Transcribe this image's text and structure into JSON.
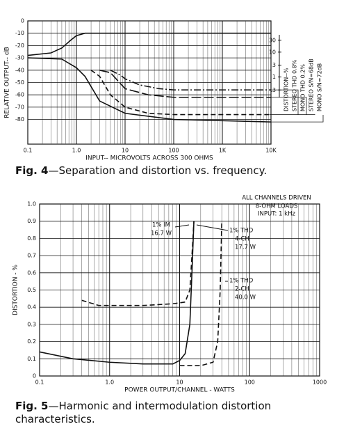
{
  "chart_data": [
    {
      "type": "line",
      "caption_label": "Fig. 4",
      "caption_text": "—Separation and distortion vs. frequency.",
      "xlabel": "INPUT-- MICROVOLTS ACROSS 300 OHMS",
      "ylabel": "RELATIVE OUTPUT-- dB",
      "y2label": "DISTORTION--%",
      "xscale": "log",
      "xlim": [
        0.1,
        10000
      ],
      "xticks": [
        0.1,
        {
          "value": 1,
          "label": "1.0"
        },
        10,
        100,
        {
          "value": 1000,
          "label": "1K"
        },
        {
          "value": 10000,
          "label": "10K"
        }
      ],
      "ylim": [
        -100,
        0
      ],
      "yticks": [
        0,
        -10,
        -20,
        -30,
        -40,
        -50,
        -60,
        -70,
        -80
      ],
      "y2scale": "log",
      "y2lim": [
        0.002,
        180
      ],
      "y2ticks": [
        30,
        10,
        3,
        1,
        {
          "value": 0.3,
          "label": ".3"
        }
      ],
      "grid": true,
      "series": [
        {
          "color": "#111",
          "dash": "solid",
          "x": [
            0.1,
            0.3,
            0.5,
            0.8,
            1,
            1.5,
            3,
            10,
            100,
            1000,
            10000
          ],
          "values": [
            -28,
            -26,
            -22,
            -15,
            -12,
            -10,
            -10,
            -10,
            -10,
            -10,
            -10
          ]
        },
        {
          "name": "STEREO THD 0.8%",
          "color": "#111",
          "dash": "dashdot",
          "x": [
            5,
            8,
            10,
            20,
            50,
            100,
            1000,
            10000
          ],
          "values": [
            -40,
            -44,
            -47,
            -52,
            -55,
            -56,
            -56,
            -56
          ]
        },
        {
          "name": "MONO THD 0.2%",
          "color": "#111",
          "dash": "longdash",
          "x": [
            3,
            5,
            10,
            30,
            100,
            1000,
            10000
          ],
          "values": [
            -40,
            -42,
            -55,
            -60,
            -62,
            -62,
            -62
          ]
        },
        {
          "name": "STEREO S/N=68dB",
          "color": "#111",
          "dash": "dashed",
          "x": [
            2,
            3,
            5,
            10,
            30,
            100,
            1000,
            10000
          ],
          "values": [
            -40,
            -45,
            -60,
            -70,
            -75,
            -76,
            -76,
            -76
          ]
        },
        {
          "name": "MONO S/N=72dB",
          "color": "#111",
          "dash": "solid",
          "x": [
            0.1,
            0.5,
            1,
            1.5,
            3,
            10,
            100,
            1000,
            10000
          ],
          "values": [
            -30,
            -31,
            -38,
            -45,
            -65,
            -75,
            -80,
            -81,
            -82
          ]
        }
      ]
    },
    {
      "type": "line",
      "caption_label": "Fig. 5",
      "caption_text": "—Harmonic and intermodulation distortion characteristics.",
      "xlabel": "POWER OUTPUT/CHANNEL - WATTS",
      "ylabel": "DISTORTION - %",
      "xscale": "log",
      "xlim": [
        0.1,
        1000
      ],
      "xticks": [
        0.1,
        {
          "value": 1,
          "label": "1.0"
        },
        10,
        100,
        1000
      ],
      "ylim": [
        0,
        1
      ],
      "yticks": [
        0,
        0.1,
        0.2,
        0.3,
        0.4,
        0.5,
        0.6,
        0.7,
        0.8,
        0.9,
        {
          "value": 1,
          "label": "1.0"
        }
      ],
      "grid": true,
      "annotations": [
        "ALL CHANNELS DRIVEN",
        "8-OHM LOADS",
        "INPUT: 1 kHz",
        "1% IM",
        "16.7 W",
        "1% THD",
        "4-CH",
        "17.7 W",
        "1% THD",
        "2-CH",
        "40.0 W"
      ],
      "series": [
        {
          "color": "#111",
          "dash": "solid",
          "x": [
            0.1,
            0.3,
            1,
            3,
            8,
            10,
            12,
            14,
            15,
            16
          ],
          "values": [
            0.14,
            0.1,
            0.08,
            0.07,
            0.07,
            0.09,
            0.13,
            0.3,
            0.6,
            0.9
          ]
        },
        {
          "color": "#111",
          "dash": "dashed",
          "x": [
            0.4,
            0.7,
            1,
            3,
            8,
            12,
            14,
            15,
            16
          ],
          "values": [
            0.44,
            0.41,
            0.41,
            0.41,
            0.42,
            0.43,
            0.5,
            0.7,
            0.9
          ]
        },
        {
          "color": "#111",
          "dash": "dashed",
          "x": [
            10,
            20,
            30,
            35,
            38,
            40
          ],
          "values": [
            0.06,
            0.06,
            0.08,
            0.2,
            0.5,
            0.9
          ]
        }
      ]
    }
  ]
}
